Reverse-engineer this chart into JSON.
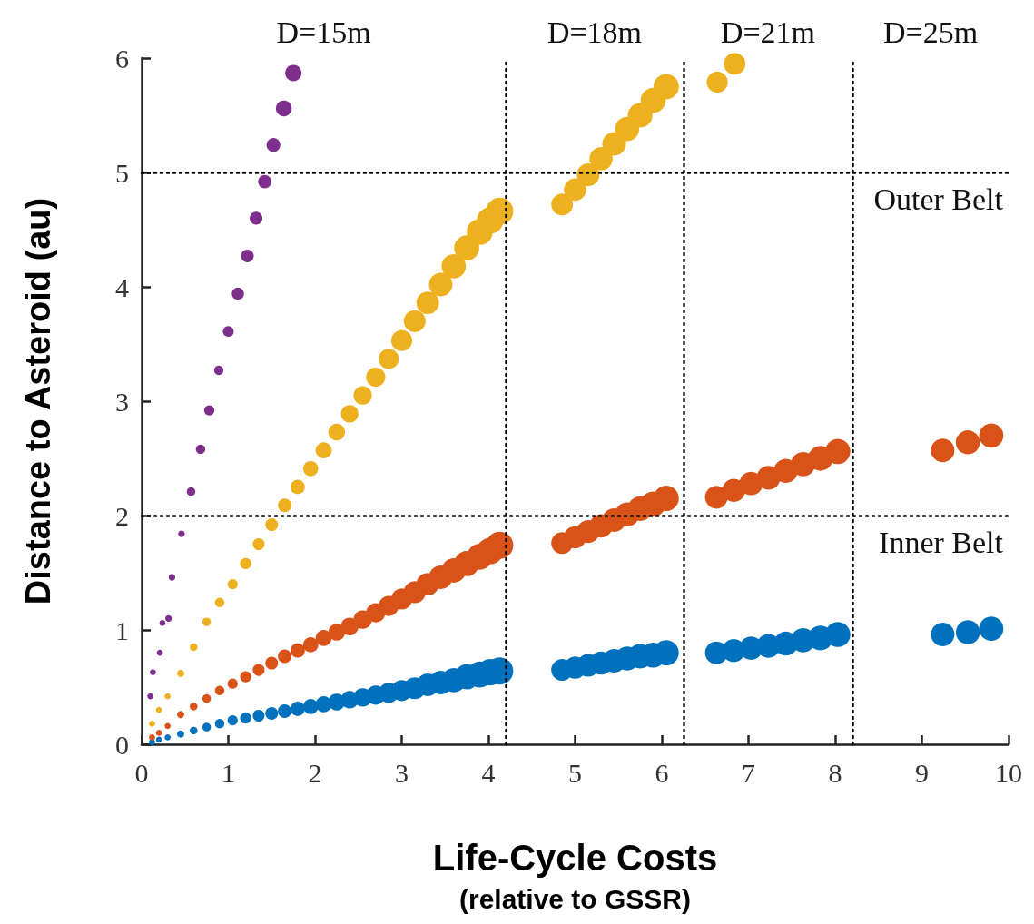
{
  "chart_data": {
    "type": "bubble",
    "xlabel": "Life-Cycle Costs\n(relative to GSSR)",
    "ylabel": "Distance to Asteroid (au)",
    "xlim": [
      0,
      10
    ],
    "xticks": [
      0,
      1,
      2,
      3,
      4,
      5,
      6,
      7,
      8,
      9,
      10
    ],
    "ylim": [
      0,
      6
    ],
    "yticks": [
      0,
      1,
      2,
      3,
      4,
      5,
      6
    ],
    "grid": false,
    "marker": "circle",
    "series": [
      {
        "color": "#0072bd",
        "x": [
          0.12,
          0.2,
          0.3,
          0.45,
          0.6,
          0.75,
          0.9,
          1.05,
          1.2,
          1.35,
          1.5,
          1.65,
          1.8,
          1.95,
          2.1,
          2.25,
          2.4,
          2.55,
          2.7,
          2.85,
          3.0,
          3.15,
          3.3,
          3.45,
          3.6,
          3.75,
          3.9,
          4.02,
          4.13,
          4.85,
          5.0,
          5.15,
          5.3,
          5.45,
          5.6,
          5.75,
          5.9,
          6.05,
          6.63,
          6.83,
          7.03,
          7.23,
          7.43,
          7.63,
          7.83,
          8.03,
          9.24,
          9.53,
          9.8
        ],
        "values": [
          0.02,
          0.04,
          0.06,
          0.09,
          0.12,
          0.15,
          0.18,
          0.21,
          0.23,
          0.25,
          0.27,
          0.29,
          0.31,
          0.33,
          0.35,
          0.37,
          0.39,
          0.41,
          0.43,
          0.45,
          0.47,
          0.49,
          0.52,
          0.54,
          0.56,
          0.59,
          0.61,
          0.63,
          0.64,
          0.65,
          0.67,
          0.69,
          0.71,
          0.73,
          0.75,
          0.77,
          0.78,
          0.8,
          0.8,
          0.82,
          0.84,
          0.86,
          0.88,
          0.91,
          0.93,
          0.96,
          0.96,
          0.98,
          1.01
        ],
        "sizes": [
          0.05,
          0.05,
          0.05,
          0.07,
          0.08,
          0.1,
          0.12,
          0.14,
          0.17,
          0.19,
          0.22,
          0.25,
          0.28,
          0.31,
          0.35,
          0.38,
          0.42,
          0.46,
          0.5,
          0.55,
          0.6,
          0.65,
          0.69,
          0.75,
          0.8,
          0.85,
          0.91,
          0.95,
          1,
          0.64,
          0.67,
          0.7,
          0.73,
          0.76,
          0.79,
          0.82,
          0.85,
          0.87,
          0.7,
          0.72,
          0.74,
          0.76,
          0.78,
          0.8,
          0.83,
          0.85,
          0.75,
          0.78,
          0.8
        ]
      },
      {
        "color": "#d95319",
        "x": [
          0.12,
          0.2,
          0.3,
          0.45,
          0.6,
          0.75,
          0.9,
          1.05,
          1.2,
          1.35,
          1.5,
          1.65,
          1.8,
          1.95,
          2.1,
          2.25,
          2.4,
          2.55,
          2.7,
          2.85,
          3.0,
          3.15,
          3.3,
          3.45,
          3.6,
          3.75,
          3.9,
          4.02,
          4.13,
          4.85,
          5.0,
          5.15,
          5.3,
          5.45,
          5.6,
          5.75,
          5.9,
          6.05,
          6.63,
          6.83,
          7.03,
          7.23,
          7.43,
          7.63,
          7.83,
          8.03,
          9.24,
          9.53,
          9.8
        ],
        "values": [
          0.06,
          0.1,
          0.16,
          0.26,
          0.33,
          0.4,
          0.47,
          0.53,
          0.59,
          0.65,
          0.71,
          0.77,
          0.82,
          0.87,
          0.93,
          0.98,
          1.03,
          1.09,
          1.15,
          1.21,
          1.27,
          1.33,
          1.4,
          1.46,
          1.52,
          1.58,
          1.64,
          1.69,
          1.74,
          1.76,
          1.81,
          1.86,
          1.91,
          1.96,
          2.01,
          2.06,
          2.1,
          2.15,
          2.16,
          2.22,
          2.28,
          2.33,
          2.39,
          2.45,
          2.5,
          2.56,
          2.57,
          2.64,
          2.7
        ],
        "sizes": [
          0.05,
          0.05,
          0.05,
          0.07,
          0.08,
          0.1,
          0.12,
          0.14,
          0.17,
          0.19,
          0.22,
          0.25,
          0.28,
          0.31,
          0.35,
          0.38,
          0.42,
          0.46,
          0.5,
          0.55,
          0.6,
          0.65,
          0.69,
          0.75,
          0.8,
          0.85,
          0.91,
          0.95,
          1,
          0.64,
          0.67,
          0.7,
          0.73,
          0.76,
          0.79,
          0.82,
          0.85,
          0.87,
          0.7,
          0.72,
          0.74,
          0.76,
          0.78,
          0.8,
          0.83,
          0.85,
          0.75,
          0.78,
          0.8
        ]
      },
      {
        "color": "#edb120",
        "x": [
          0.12,
          0.2,
          0.3,
          0.45,
          0.6,
          0.75,
          0.9,
          1.05,
          1.2,
          1.35,
          1.5,
          1.65,
          1.8,
          1.95,
          2.1,
          2.25,
          2.4,
          2.55,
          2.7,
          2.85,
          3.0,
          3.15,
          3.3,
          3.45,
          3.6,
          3.75,
          3.9,
          4.02,
          4.13,
          4.85,
          5.0,
          5.15,
          5.3,
          5.45,
          5.6,
          5.75,
          5.9,
          6.05,
          6.64,
          6.84
        ],
        "values": [
          0.18,
          0.3,
          0.42,
          0.62,
          0.85,
          1.07,
          1.24,
          1.4,
          1.58,
          1.75,
          1.92,
          2.09,
          2.25,
          2.41,
          2.57,
          2.73,
          2.89,
          3.05,
          3.21,
          3.37,
          3.53,
          3.7,
          3.86,
          4.02,
          4.18,
          4.34,
          4.48,
          4.58,
          4.66,
          4.72,
          4.85,
          4.98,
          5.12,
          5.25,
          5.38,
          5.5,
          5.63,
          5.75,
          5.79,
          5.95
        ],
        "sizes": [
          0.05,
          0.05,
          0.05,
          0.07,
          0.08,
          0.1,
          0.12,
          0.14,
          0.17,
          0.19,
          0.22,
          0.25,
          0.28,
          0.31,
          0.35,
          0.38,
          0.42,
          0.46,
          0.5,
          0.55,
          0.6,
          0.65,
          0.69,
          0.75,
          0.8,
          0.85,
          0.91,
          0.95,
          1,
          0.64,
          0.67,
          0.7,
          0.73,
          0.76,
          0.79,
          0.82,
          0.85,
          0.87,
          0.6,
          0.64
        ]
      },
      {
        "color": "#7e2f8e",
        "x": [
          0.1,
          0.13,
          0.21,
          0.24,
          0.31,
          0.35,
          0.46,
          0.57,
          0.68,
          0.78,
          0.89,
          1.0,
          1.11,
          1.22,
          1.32,
          1.42,
          1.52,
          1.64,
          1.75
        ],
        "values": [
          0.42,
          0.63,
          0.8,
          1.06,
          1.1,
          1.46,
          1.84,
          2.21,
          2.58,
          2.92,
          3.27,
          3.61,
          3.94,
          4.27,
          4.6,
          4.92,
          5.24,
          5.56,
          5.87
        ],
        "sizes": [
          0.05,
          0.05,
          0.05,
          0.05,
          0.06,
          0.06,
          0.06,
          0.1,
          0.12,
          0.14,
          0.12,
          0.16,
          0.2,
          0.22,
          0.22,
          0.24,
          0.26,
          0.34,
          0.36
        ]
      }
    ],
    "ref_lines": [
      {
        "axis": "x",
        "value": 4.2,
        "line_style": "dotted",
        "color": "#000000"
      },
      {
        "axis": "x",
        "value": 6.25,
        "line_style": "dotted",
        "color": "#000000"
      },
      {
        "axis": "x",
        "value": 8.2,
        "line_style": "dotted",
        "color": "#000000"
      },
      {
        "axis": "y",
        "value": 5,
        "label": "Outer Belt",
        "line_style": "dotted",
        "color": "#000000"
      },
      {
        "axis": "y",
        "value": 2,
        "label": "Inner Belt",
        "line_style": "dotted",
        "color": "#000000"
      }
    ],
    "annotations": [
      "D=15m",
      "D=18m",
      "D=21m",
      "D=25m"
    ]
  }
}
